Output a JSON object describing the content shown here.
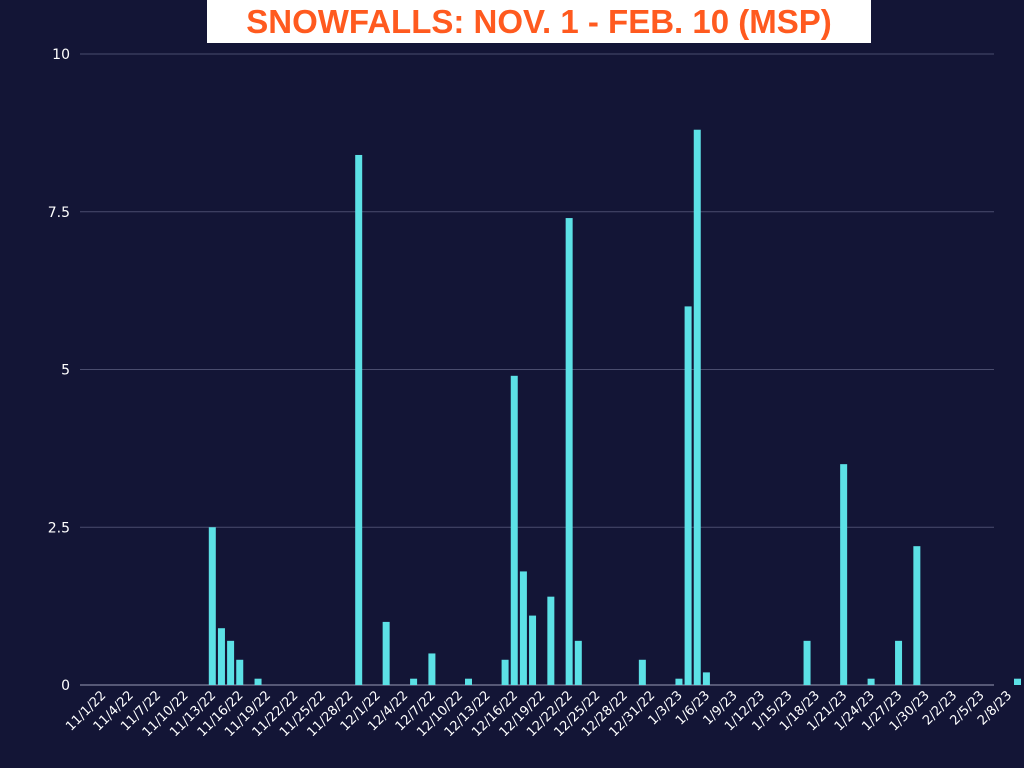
{
  "chart_data": {
    "type": "bar",
    "title": "SNOWFALLS: NOV. 1 - FEB. 10 (MSP)",
    "xlabel": "",
    "ylabel": "",
    "ylim": [
      0,
      10
    ],
    "yticks": [
      "0",
      "2.5",
      "5",
      "7.5",
      "10"
    ],
    "grid": true,
    "colors": {
      "bar": "#5ce1e6",
      "background": "#131536",
      "title": "#ff5a1f",
      "grid": "#4a4d6e"
    },
    "xtick_labels": [
      "11/1/22",
      "11/4/22",
      "11/7/22",
      "11/10/22",
      "11/13/22",
      "11/16/22",
      "11/19/22",
      "11/22/22",
      "11/25/22",
      "11/28/22",
      "12/1/22",
      "12/4/22",
      "12/7/22",
      "12/10/22",
      "12/13/22",
      "12/16/22",
      "12/19/22",
      "12/22/22",
      "12/25/22",
      "12/28/22",
      "12/31/22",
      "1/3/23",
      "1/6/23",
      "1/9/23",
      "1/12/23",
      "1/15/23",
      "1/18/23",
      "1/21/23",
      "1/24/23",
      "1/27/23",
      "1/30/23",
      "2/2/23",
      "2/5/23",
      "2/8/23"
    ],
    "categories": [
      "11/1/22",
      "11/2/22",
      "11/3/22",
      "11/4/22",
      "11/5/22",
      "11/6/22",
      "11/7/22",
      "11/8/22",
      "11/9/22",
      "11/10/22",
      "11/11/22",
      "11/12/22",
      "11/13/22",
      "11/14/22",
      "11/15/22",
      "11/16/22",
      "11/17/22",
      "11/18/22",
      "11/19/22",
      "11/20/22",
      "11/21/22",
      "11/22/22",
      "11/23/22",
      "11/24/22",
      "11/25/22",
      "11/26/22",
      "11/27/22",
      "11/28/22",
      "11/29/22",
      "11/30/22",
      "12/1/22",
      "12/2/22",
      "12/3/22",
      "12/4/22",
      "12/5/22",
      "12/6/22",
      "12/7/22",
      "12/8/22",
      "12/9/22",
      "12/10/22",
      "12/11/22",
      "12/12/22",
      "12/13/22",
      "12/14/22",
      "12/15/22",
      "12/16/22",
      "12/17/22",
      "12/18/22",
      "12/19/22",
      "12/20/22",
      "12/21/22",
      "12/22/22",
      "12/23/22",
      "12/24/22",
      "12/25/22",
      "12/26/22",
      "12/27/22",
      "12/28/22",
      "12/29/22",
      "12/30/22",
      "12/31/22",
      "1/1/23",
      "1/2/23",
      "1/3/23",
      "1/4/23",
      "1/5/23",
      "1/6/23",
      "1/7/23",
      "1/8/23",
      "1/9/23",
      "1/10/23",
      "1/11/23",
      "1/12/23",
      "1/13/23",
      "1/14/23",
      "1/15/23",
      "1/16/23",
      "1/17/23",
      "1/18/23",
      "1/19/23",
      "1/20/23",
      "1/21/23",
      "1/22/23",
      "1/23/23",
      "1/24/23",
      "1/25/23",
      "1/26/23",
      "1/27/23",
      "1/28/23",
      "1/29/23",
      "1/30/23",
      "1/31/23",
      "2/1/23",
      "2/2/23",
      "2/3/23",
      "2/4/23",
      "2/5/23",
      "2/6/23",
      "2/7/23",
      "2/8/23",
      "2/9/23",
      "2/10/23"
    ],
    "values": [
      0,
      0,
      0,
      0,
      0,
      0,
      0,
      0,
      0,
      0,
      0,
      0,
      2.5,
      0.9,
      0.7,
      0.4,
      0,
      0.1,
      0,
      0,
      0,
      0,
      0,
      0,
      0,
      0,
      0,
      0,
      8.4,
      0,
      0,
      1.0,
      0,
      0,
      0.1,
      0,
      0.5,
      0,
      0,
      0,
      0.1,
      0,
      0,
      0,
      0.4,
      4.9,
      1.8,
      1.1,
      0,
      1.4,
      0,
      7.4,
      0.7,
      0,
      0,
      0,
      0,
      0,
      0,
      0.4,
      0,
      0,
      0,
      0.1,
      6.0,
      8.8,
      0.2,
      0,
      0,
      0,
      0,
      0,
      0,
      0,
      0,
      0,
      0,
      0.7,
      0,
      0,
      0,
      3.5,
      0,
      0,
      0.1,
      0,
      0,
      0.7,
      0,
      2.2,
      0,
      0,
      0,
      0,
      0,
      0,
      0,
      0,
      0,
      0,
      0.1,
      0
    ]
  }
}
